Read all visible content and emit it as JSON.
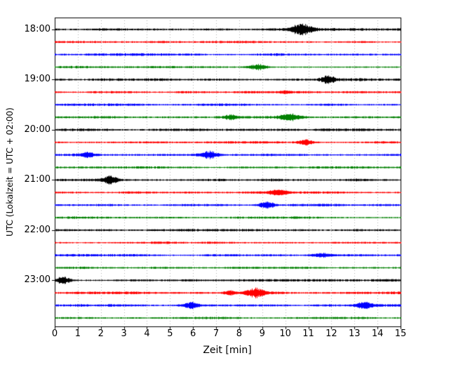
{
  "chart_data": {
    "type": "line",
    "variant": "seismogram-dayplot",
    "title": "",
    "xlabel": "Zeit [min]",
    "ylabel": "UTC (Lokalzeit = UTC + 02:00)",
    "xlim": [
      0,
      15
    ],
    "xticks": [
      "0",
      "1",
      "2",
      "3",
      "4",
      "5",
      "6",
      "7",
      "8",
      "9",
      "10",
      "11",
      "12",
      "13",
      "14",
      "15"
    ],
    "hour_labels": [
      "18:00",
      "19:00",
      "20:00",
      "21:00",
      "22:00",
      "23:00"
    ],
    "hour_rows": [
      0,
      4,
      8,
      12,
      16,
      20
    ],
    "minutes_per_line": 15,
    "grid": {
      "vertical_dotted": true,
      "gridline_color": "#b0b0b0"
    },
    "color_cycle": [
      "#000000",
      "#ff0000",
      "#0000ff",
      "#008000"
    ],
    "traces": [
      {
        "start": "18:00",
        "color": "#000000",
        "noise": 1.5,
        "seed": 101,
        "events": [
          {
            "t": 10.7,
            "amp": 7.5,
            "w": 0.45
          }
        ]
      },
      {
        "start": "18:15",
        "color": "#ff0000",
        "noise": 1.3,
        "seed": 102,
        "events": []
      },
      {
        "start": "18:30",
        "color": "#0000ff",
        "noise": 1.4,
        "seed": 103,
        "events": []
      },
      {
        "start": "18:45",
        "color": "#008000",
        "noise": 1.3,
        "seed": 104,
        "events": [
          {
            "t": 8.8,
            "amp": 4.0,
            "w": 0.4
          }
        ]
      },
      {
        "start": "19:00",
        "color": "#000000",
        "noise": 1.5,
        "seed": 105,
        "events": [
          {
            "t": 11.85,
            "amp": 5.0,
            "w": 0.3
          }
        ]
      },
      {
        "start": "19:15",
        "color": "#ff0000",
        "noise": 1.3,
        "seed": 106,
        "events": [
          {
            "t": 10.0,
            "amp": 1.5,
            "w": 0.3
          }
        ]
      },
      {
        "start": "19:30",
        "color": "#0000ff",
        "noise": 1.3,
        "seed": 107,
        "events": []
      },
      {
        "start": "19:45",
        "color": "#008000",
        "noise": 1.4,
        "seed": 108,
        "events": [
          {
            "t": 7.6,
            "amp": 3.0,
            "w": 0.25
          },
          {
            "t": 10.2,
            "amp": 4.5,
            "w": 0.45
          }
        ]
      },
      {
        "start": "20:00",
        "color": "#000000",
        "noise": 1.5,
        "seed": 109,
        "events": []
      },
      {
        "start": "20:15",
        "color": "#ff0000",
        "noise": 1.3,
        "seed": 110,
        "events": [
          {
            "t": 10.9,
            "amp": 3.5,
            "w": 0.3
          }
        ]
      },
      {
        "start": "20:30",
        "color": "#0000ff",
        "noise": 1.4,
        "seed": 111,
        "events": [
          {
            "t": 1.4,
            "amp": 3.5,
            "w": 0.3
          },
          {
            "t": 6.7,
            "amp": 5.0,
            "w": 0.4
          }
        ]
      },
      {
        "start": "20:45",
        "color": "#008000",
        "noise": 1.3,
        "seed": 112,
        "events": []
      },
      {
        "start": "21:00",
        "color": "#000000",
        "noise": 1.5,
        "seed": 113,
        "events": [
          {
            "t": 2.4,
            "amp": 5.5,
            "w": 0.3
          }
        ]
      },
      {
        "start": "21:15",
        "color": "#ff0000",
        "noise": 1.3,
        "seed": 114,
        "events": [
          {
            "t": 9.7,
            "amp": 3.5,
            "w": 0.45
          }
        ]
      },
      {
        "start": "21:30",
        "color": "#0000ff",
        "noise": 1.4,
        "seed": 115,
        "events": [
          {
            "t": 9.2,
            "amp": 4.5,
            "w": 0.35
          }
        ]
      },
      {
        "start": "21:45",
        "color": "#008000",
        "noise": 1.3,
        "seed": 116,
        "events": []
      },
      {
        "start": "22:00",
        "color": "#000000",
        "noise": 1.6,
        "seed": 117,
        "events": []
      },
      {
        "start": "22:15",
        "color": "#ff0000",
        "noise": 1.3,
        "seed": 118,
        "events": []
      },
      {
        "start": "22:30",
        "color": "#0000ff",
        "noise": 1.4,
        "seed": 119,
        "events": [
          {
            "t": 11.6,
            "amp": 2.5,
            "w": 0.4
          }
        ]
      },
      {
        "start": "22:45",
        "color": "#008000",
        "noise": 1.3,
        "seed": 120,
        "events": []
      },
      {
        "start": "23:00",
        "color": "#000000",
        "noise": 1.5,
        "seed": 121,
        "events": [
          {
            "t": 0.35,
            "amp": 5.0,
            "w": 0.3
          }
        ]
      },
      {
        "start": "23:15",
        "color": "#ff0000",
        "noise": 1.4,
        "seed": 122,
        "events": [
          {
            "t": 7.6,
            "amp": 2.5,
            "w": 0.3
          },
          {
            "t": 8.7,
            "amp": 6.0,
            "w": 0.4
          }
        ]
      },
      {
        "start": "23:30",
        "color": "#0000ff",
        "noise": 1.4,
        "seed": 123,
        "events": [
          {
            "t": 5.9,
            "amp": 4.0,
            "w": 0.3
          },
          {
            "t": 13.4,
            "amp": 4.5,
            "w": 0.35
          }
        ]
      },
      {
        "start": "23:45",
        "color": "#008000",
        "noise": 1.2,
        "seed": 124,
        "events": []
      }
    ]
  }
}
